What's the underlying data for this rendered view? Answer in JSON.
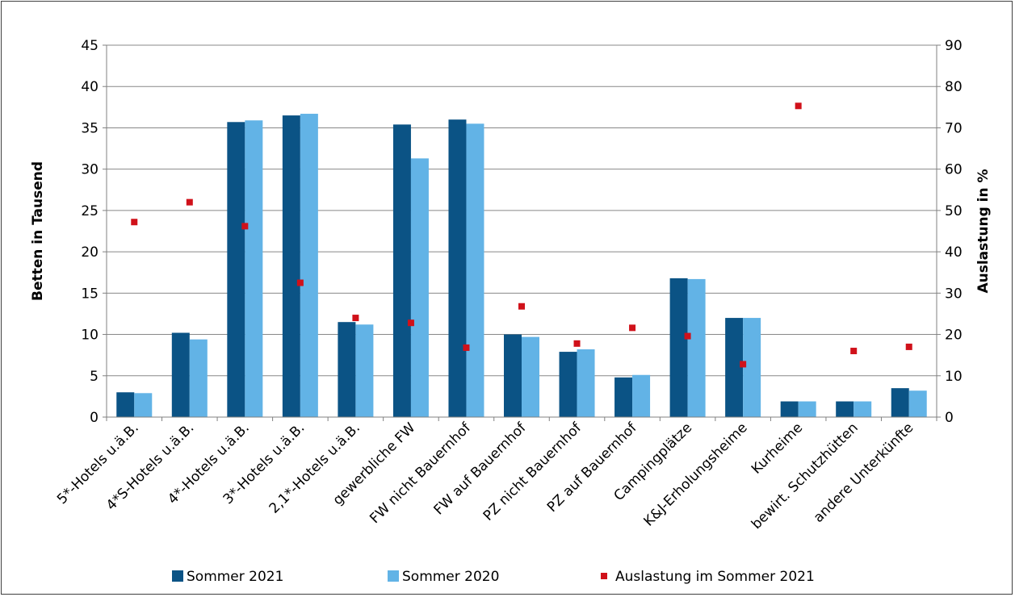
{
  "chart_data": {
    "type": "bar",
    "categories": [
      "5*-Hotels u.ä.B.",
      "4*S-Hotels u.ä.B.",
      "4*-Hotels u.ä.B.",
      "3*-Hotels u.ä.B.",
      "2,1*-Hotels u.ä.B.",
      "gewerbliche FW",
      "FW nicht Bauernhof",
      "FW auf Bauernhof",
      "PZ nicht Bauernhof",
      "PZ auf Bauernhof",
      "Campingplätze",
      "K&J-Erholungsheime",
      "Kurheime",
      "bewirt. Schutzhütten",
      "andere Unterkünfte"
    ],
    "series": [
      {
        "name": "Sommer 2021",
        "type": "bar",
        "axis": "left",
        "color": "#0b5385",
        "values": [
          3.0,
          10.2,
          35.7,
          36.5,
          11.5,
          35.4,
          36.0,
          10.0,
          7.9,
          4.8,
          16.8,
          12.0,
          1.9,
          1.9,
          3.5
        ]
      },
      {
        "name": "Sommer 2020",
        "type": "bar",
        "axis": "left",
        "color": "#62b3e6",
        "values": [
          2.9,
          9.4,
          35.9,
          36.7,
          11.2,
          31.3,
          35.5,
          9.7,
          8.2,
          5.1,
          16.7,
          12.0,
          1.9,
          1.9,
          3.2
        ]
      },
      {
        "name": "Auslastung im Sommer 2021",
        "type": "scatter",
        "axis": "right",
        "color": "#d0111a",
        "values": [
          47.2,
          52.0,
          46.2,
          32.5,
          24.0,
          22.8,
          16.8,
          26.8,
          17.8,
          21.6,
          19.6,
          12.8,
          75.3,
          16.0,
          17.0
        ]
      }
    ],
    "ylabel": "Betten in Tausend",
    "y2label": "Auslastung in %",
    "ylim": [
      0,
      45
    ],
    "y2lim": [
      0,
      90
    ],
    "yticks": [
      0,
      5,
      10,
      15,
      20,
      25,
      30,
      35,
      40,
      45
    ],
    "y2ticks": [
      0,
      10,
      20,
      30,
      40,
      50,
      60,
      70,
      80,
      90
    ],
    "grid": true,
    "legend_position": "bottom"
  }
}
